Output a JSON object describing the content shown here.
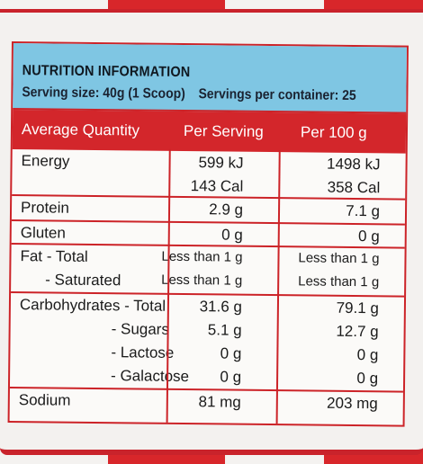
{
  "title": "NUTRITION INFORMATION",
  "serving_size_label": "Serving size:",
  "serving_size_value": "40g (1 Scoop)",
  "servings_label": "Servings per container:",
  "servings_value": "25",
  "headers": {
    "quantity": "Average Quantity",
    "per_serving": "Per Serving",
    "per_100g": "Per 100 g"
  },
  "rows": [
    {
      "label": "Energy",
      "sub": "",
      "per_serving": "599 kJ",
      "per_100g": "1498 kJ"
    },
    {
      "label": "",
      "sub": "",
      "per_serving": "143 Cal",
      "per_100g": "358 Cal"
    },
    {
      "label": "Protein",
      "sub": "",
      "per_serving": "2.9 g",
      "per_100g": "7.1 g"
    },
    {
      "label": "Gluten",
      "sub": "",
      "per_serving": "0 g",
      "per_100g": "0 g"
    },
    {
      "label": "Fat - Total",
      "sub": "",
      "per_serving": "Less than 1 g",
      "per_100g": "Less than 1 g"
    },
    {
      "label": "",
      "sub": "- Saturated",
      "per_serving": "Less than 1 g",
      "per_100g": "Less than 1 g"
    },
    {
      "label": "Carbohydrates - Total",
      "sub": "",
      "per_serving": "31.6 g",
      "per_100g": "79.1 g"
    },
    {
      "label": "",
      "sub": "- Sugars",
      "per_serving": "5.1 g",
      "per_100g": "12.7 g"
    },
    {
      "label": "",
      "sub": "- Lactose",
      "per_serving": "0 g",
      "per_100g": "0 g"
    },
    {
      "label": "",
      "sub": "- Galactose",
      "per_serving": "0 g",
      "per_100g": "0 g"
    },
    {
      "label": "Sodium",
      "sub": "",
      "per_serving": "81 mg",
      "per_100g": "203 mg"
    }
  ]
}
